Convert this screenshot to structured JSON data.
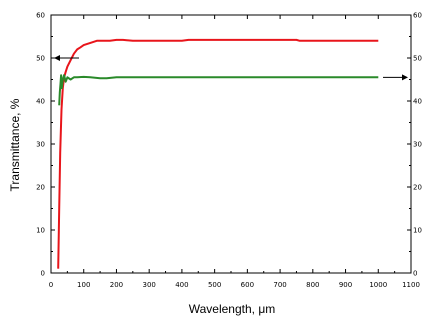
{
  "chart_data": {
    "type": "line",
    "xlabel": "Wavelength, μm",
    "ylabel": "Transmittance, %",
    "xlim": [
      0,
      1100
    ],
    "ylim": [
      0,
      60
    ],
    "y2lim": [
      0,
      60
    ],
    "x_ticks": [
      "0",
      "100",
      "200",
      "300",
      "400",
      "500",
      "600",
      "700",
      "800",
      "900",
      "1000",
      "1100"
    ],
    "y_ticks": [
      "0",
      "10",
      "20",
      "30",
      "40",
      "50",
      "60"
    ],
    "y2_ticks": [
      "0",
      "10",
      "20",
      "30",
      "40",
      "50",
      "60"
    ],
    "grid": false,
    "annotations": [
      {
        "type": "arrow",
        "direction": "left",
        "near_series": "red",
        "points_to": "left-axis"
      },
      {
        "type": "arrow",
        "direction": "right",
        "near_series": "green",
        "points_to": "right-axis"
      }
    ],
    "series": [
      {
        "color": "#e8151b",
        "axis": "left",
        "x": [
          22,
          25,
          28,
          32,
          36,
          40,
          45,
          50,
          60,
          70,
          80,
          90,
          100,
          120,
          140,
          160,
          180,
          200,
          220,
          250,
          300,
          350,
          400,
          420,
          450,
          500,
          550,
          600,
          650,
          700,
          750,
          760,
          800,
          850,
          900,
          950,
          1000
        ],
        "y": [
          1,
          15,
          28,
          38,
          43,
          45.5,
          46.8,
          48,
          49.5,
          51,
          52,
          52.5,
          53,
          53.5,
          54,
          54,
          54,
          54.2,
          54.2,
          54,
          54,
          54,
          54,
          54.2,
          54.2,
          54.2,
          54.2,
          54.2,
          54.2,
          54.2,
          54.2,
          54,
          54,
          54,
          54,
          54,
          54
        ]
      },
      {
        "color": "#2a8a2a",
        "axis": "right",
        "x": [
          25,
          27,
          29,
          31,
          33,
          36,
          40,
          45,
          50,
          60,
          70,
          80,
          100,
          120,
          150,
          170,
          200,
          250,
          300,
          400,
          500,
          600,
          700,
          800,
          900,
          1000
        ],
        "y": [
          39,
          42,
          44,
          46,
          43,
          45,
          46,
          44.5,
          45.5,
          45,
          45.5,
          45.5,
          45.6,
          45.5,
          45.3,
          45.3,
          45.5,
          45.5,
          45.5,
          45.5,
          45.5,
          45.5,
          45.5,
          45.5,
          45.5,
          45.5
        ]
      }
    ]
  }
}
